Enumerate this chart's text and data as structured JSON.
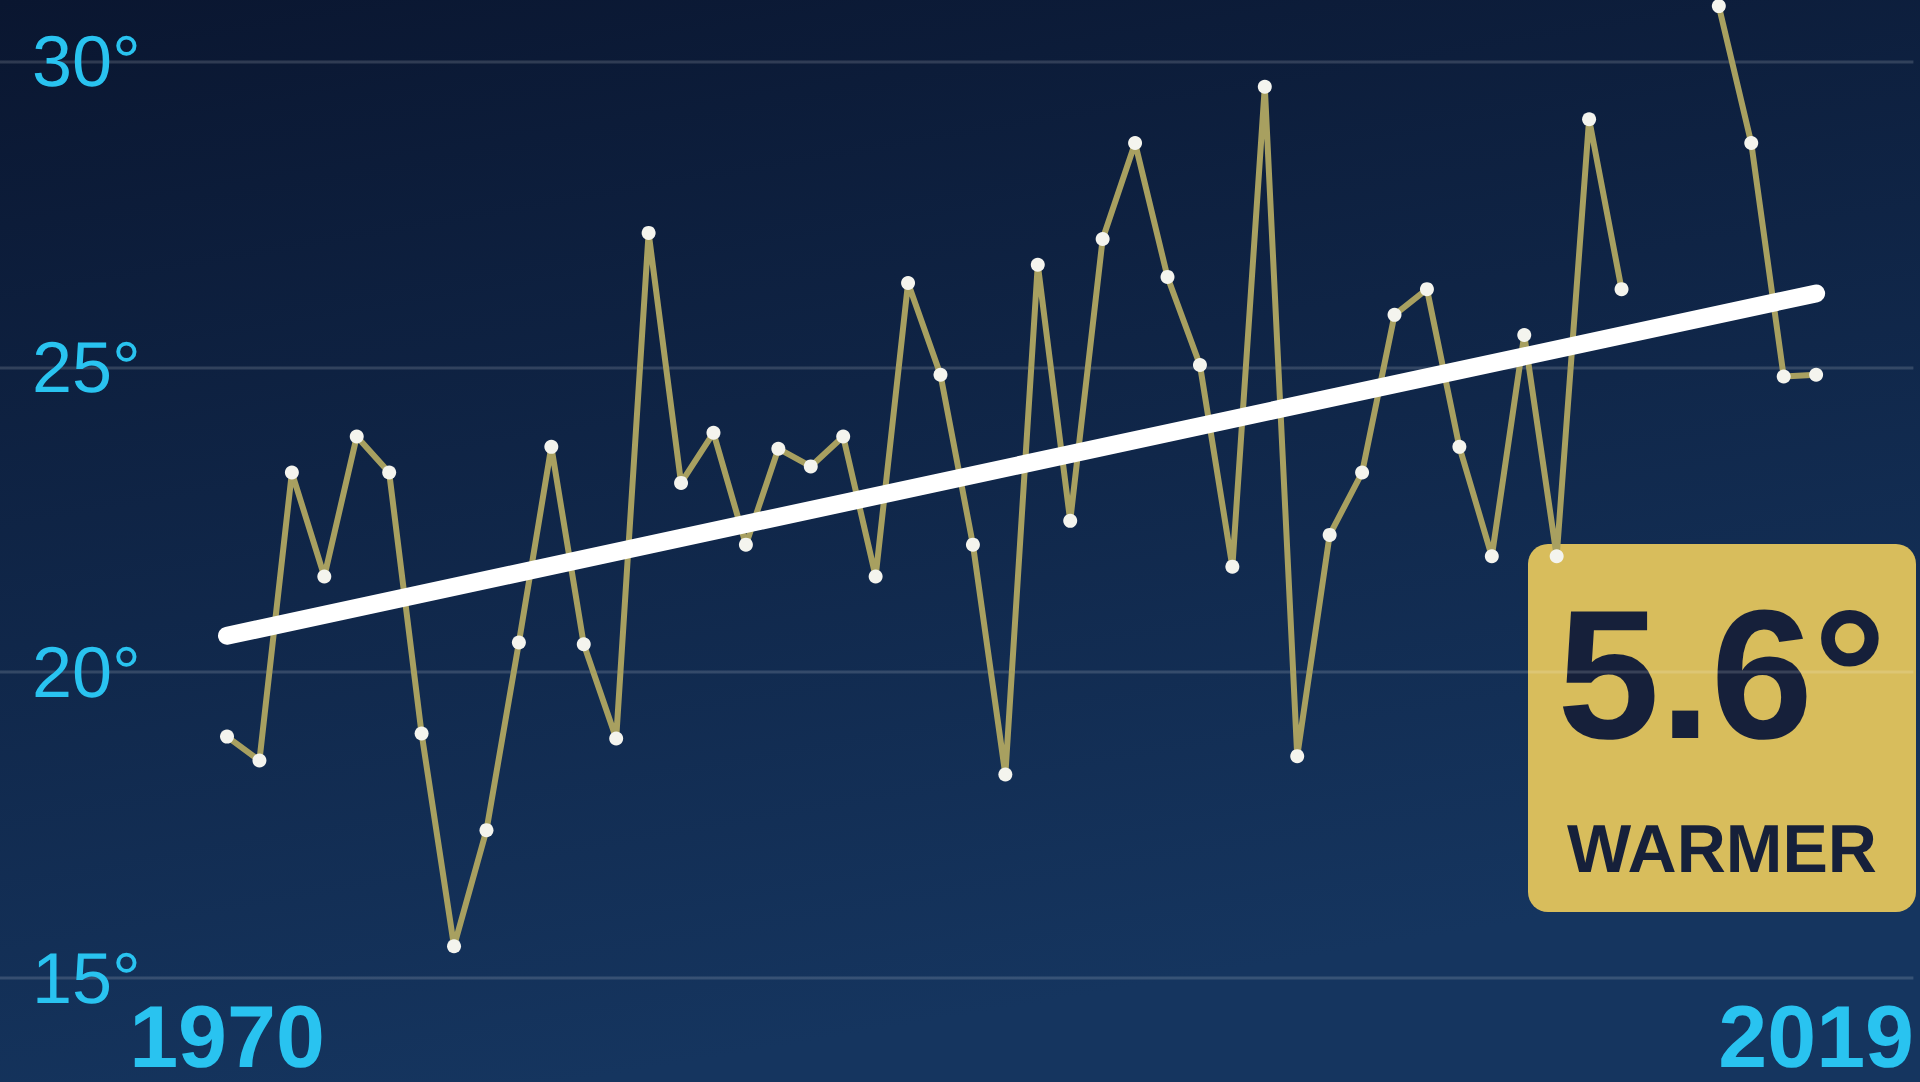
{
  "chart_data": {
    "type": "line",
    "x": [
      1970,
      1971,
      1972,
      1973,
      1974,
      1975,
      1976,
      1977,
      1978,
      1979,
      1980,
      1981,
      1982,
      1983,
      1984,
      1985,
      1986,
      1987,
      1988,
      1989,
      1990,
      1991,
      1992,
      1993,
      1994,
      1995,
      1996,
      1997,
      1998,
      1999,
      2000,
      2001,
      2002,
      2003,
      2004,
      2005,
      2006,
      2007,
      2008,
      2009,
      2010,
      2011,
      2012,
      2013,
      2014,
      2015,
      2016,
      2017,
      2018,
      2019
    ],
    "series": [
      {
        "color": "#a8a060",
        "values": [
          18.95,
          18.56,
          23.27,
          21.57,
          23.86,
          23.27,
          19.0,
          15.52,
          17.42,
          20.49,
          23.69,
          20.46,
          18.92,
          27.19,
          23.1,
          23.92,
          22.09,
          23.66,
          23.37,
          23.86,
          21.57,
          26.37,
          24.87,
          22.09,
          18.33,
          26.67,
          22.48,
          27.09,
          28.66,
          26.47,
          25.03,
          21.73,
          29.58,
          18.63,
          22.25,
          23.27,
          25.85,
          26.27,
          23.69,
          21.9,
          25.52,
          21.9,
          29.05,
          26.27,
          null,
          null,
          30.9,
          28.66,
          24.84,
          24.87
        ]
      },
      {
        "type": "line",
        "color": "#ffffff",
        "marker": "none",
        "x": [
          1970,
          2019
        ],
        "values": [
          20.6,
          26.2
        ]
      }
    ],
    "xlim": [
      1963,
      2022
    ],
    "xticks": [
      1970,
      2019
    ],
    "ylim": [
      13.3,
      31
    ],
    "yticks": [
      {
        "value": 15,
        "label": "15°"
      },
      {
        "value": 20,
        "label": "20°"
      },
      {
        "value": 25,
        "label": "25°"
      },
      {
        "value": 30,
        "label": "30°"
      }
    ],
    "grid": "y",
    "marker": "circle",
    "line_style": "solid",
    "annotations": [
      "5.6°",
      "WARMER"
    ]
  }
}
